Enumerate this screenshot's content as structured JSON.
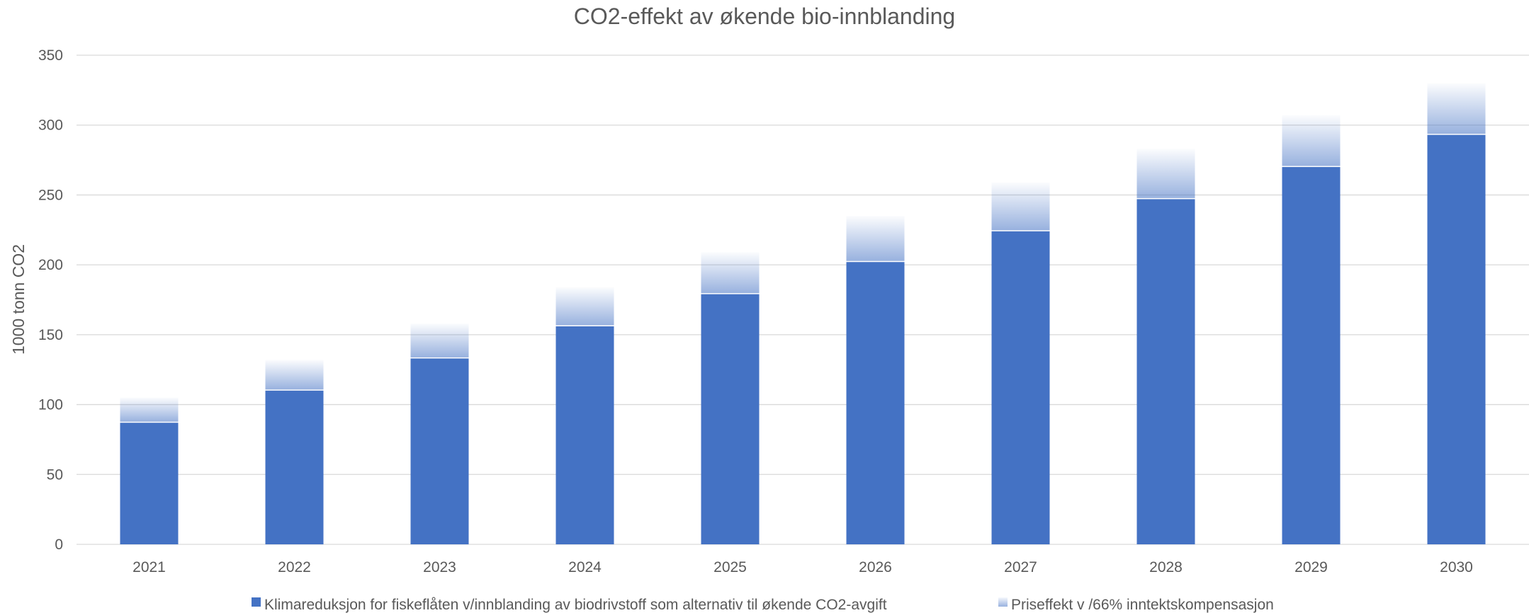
{
  "chart_data": {
    "type": "bar",
    "stacked": true,
    "title": "CO2-effekt av økende bio-innblanding",
    "xlabel": "",
    "ylabel": "1000 tonn CO2",
    "ylim": [
      0,
      350
    ],
    "yticks": [
      0,
      50,
      100,
      150,
      200,
      250,
      300,
      350
    ],
    "grid": true,
    "legend_position": "bottom",
    "categories": [
      "2021",
      "2022",
      "2023",
      "2024",
      "2025",
      "2026",
      "2027",
      "2028",
      "2029",
      "2030"
    ],
    "series": [
      {
        "name": "Klimareduksjon for fiskeflåten v/innblanding av biodrivstoff som alternativ til økende CO2-avgift",
        "values": [
          87,
          110,
          133,
          156,
          179,
          202,
          224,
          247,
          270,
          293
        ],
        "color": "#4472C4",
        "fill": "solid"
      },
      {
        "name": "Priseffekt v /66% inntektskompensasjon",
        "values": [
          18,
          22,
          25,
          28,
          30,
          33,
          35,
          36,
          37,
          37
        ],
        "color": "#4472C4",
        "fill": "gradient"
      }
    ]
  }
}
